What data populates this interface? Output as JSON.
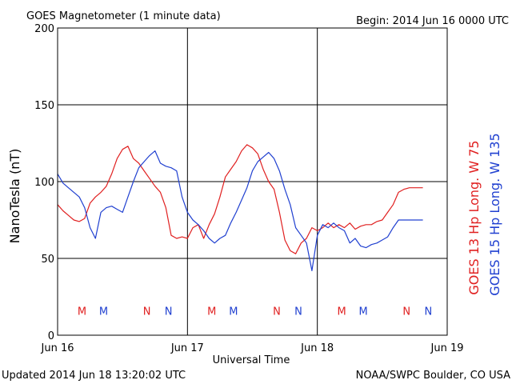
{
  "header": {
    "title": "GOES Magnetometer (1 minute data)",
    "begin": "Begin:  2014 Jun 16 0000 UTC"
  },
  "footer": {
    "updated": "Updated 2014 Jun 18 13:20:02 UTC",
    "credit": "NOAA/SWPC Boulder, CO USA"
  },
  "chart_data": {
    "type": "line",
    "ylabel": "NanoTesla (nT)",
    "xlabel": "Universal Time",
    "ylim": [
      0,
      200
    ],
    "yticks": [
      "0",
      "50",
      "100",
      "150",
      "200"
    ],
    "xlim_hours": [
      0,
      72
    ],
    "xticks": [
      {
        "hour": 0,
        "label": "Jun 16"
      },
      {
        "hour": 24,
        "label": "Jun 17"
      },
      {
        "hour": 48,
        "label": "Jun 18"
      },
      {
        "hour": 72,
        "label": "Jun 19"
      }
    ],
    "grid": true,
    "series": [
      {
        "name": "GOES 13 Hp  Long. W 75",
        "color": "#e02020",
        "x_hours": [
          0,
          1,
          2,
          3,
          4,
          5,
          6,
          7,
          8,
          9,
          10,
          11,
          12,
          13,
          14,
          15,
          16,
          17,
          18,
          19,
          20,
          21,
          22,
          23,
          24,
          25,
          26,
          27,
          28,
          29,
          30,
          31,
          32,
          33,
          34,
          35,
          36,
          37,
          38,
          39,
          40,
          41,
          42,
          43,
          44,
          45,
          46,
          47,
          48,
          49,
          50,
          51,
          52,
          53,
          54,
          55,
          56,
          57,
          58,
          59,
          60,
          61,
          62,
          63,
          64,
          65,
          66,
          67,
          67.5
        ],
        "values": [
          85,
          81,
          78,
          75,
          74,
          76,
          86,
          90,
          93,
          97,
          105,
          115,
          121,
          123,
          115,
          112,
          107,
          102,
          97,
          93,
          83,
          65,
          63,
          64,
          63,
          70,
          72,
          63,
          72,
          79,
          90,
          103,
          108,
          113,
          120,
          124,
          122,
          118,
          108,
          100,
          95,
          80,
          62,
          55,
          53,
          60,
          63,
          70,
          68,
          70,
          73,
          70,
          72,
          70,
          73,
          69,
          71,
          72,
          72,
          74,
          75,
          80,
          85,
          93,
          95,
          96,
          96,
          96,
          96
        ]
      },
      {
        "name": "GOES 15 Hp  Long. W 135",
        "color": "#2040d0",
        "x_hours": [
          0,
          1,
          2,
          3,
          4,
          5,
          6,
          7,
          8,
          9,
          10,
          11,
          12,
          13,
          14,
          15,
          16,
          17,
          18,
          19,
          20,
          21,
          22,
          23,
          24,
          25,
          26,
          27,
          28,
          29,
          30,
          31,
          32,
          33,
          34,
          35,
          36,
          37,
          38,
          39,
          40,
          41,
          42,
          43,
          44,
          45,
          46,
          47,
          48,
          49,
          50,
          51,
          52,
          53,
          54,
          55,
          56,
          57,
          58,
          59,
          60,
          61,
          62,
          63,
          64,
          65,
          66,
          67,
          67.5
        ],
        "values": [
          105,
          99,
          96,
          93,
          90,
          83,
          70,
          63,
          80,
          83,
          84,
          82,
          80,
          90,
          100,
          109,
          113,
          117,
          120,
          112,
          110,
          109,
          107,
          90,
          80,
          75,
          72,
          68,
          63,
          60,
          63,
          65,
          73,
          80,
          88,
          96,
          107,
          113,
          116,
          119,
          115,
          107,
          95,
          85,
          70,
          65,
          60,
          42,
          65,
          72,
          70,
          73,
          70,
          68,
          60,
          63,
          58,
          57,
          59,
          60,
          62,
          64,
          70,
          75,
          75,
          75,
          75,
          75,
          75
        ]
      }
    ],
    "markers": [
      {
        "label": "M",
        "hour": 4.5,
        "color": "#e02020"
      },
      {
        "label": "M",
        "hour": 8.5,
        "color": "#2040d0"
      },
      {
        "label": "N",
        "hour": 16.5,
        "color": "#e02020"
      },
      {
        "label": "N",
        "hour": 20.5,
        "color": "#2040d0"
      },
      {
        "label": "M",
        "hour": 28.5,
        "color": "#e02020"
      },
      {
        "label": "M",
        "hour": 32.5,
        "color": "#2040d0"
      },
      {
        "label": "N",
        "hour": 40.5,
        "color": "#e02020"
      },
      {
        "label": "N",
        "hour": 44.5,
        "color": "#2040d0"
      },
      {
        "label": "M",
        "hour": 52.5,
        "color": "#e02020"
      },
      {
        "label": "M",
        "hour": 56.5,
        "color": "#2040d0"
      },
      {
        "label": "N",
        "hour": 64.5,
        "color": "#e02020"
      },
      {
        "label": "N",
        "hour": 68.5,
        "color": "#2040d0"
      }
    ],
    "markers_value": 16
  }
}
